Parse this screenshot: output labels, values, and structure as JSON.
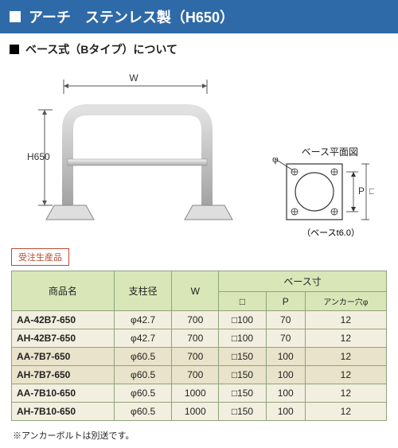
{
  "colors": {
    "title_bg": "#2f6aa8",
    "accent": "#b84a2e",
    "table_head_bg": "#d9e7b8",
    "row_a": "#f3efe0",
    "row_b": "#e9e3cb"
  },
  "title": "アーチ　ステンレス製（H650）",
  "subtitle": "ベース式（Bタイプ）について",
  "made_to_order_label": "受注生産品",
  "diagram": {
    "w_label": "W",
    "h_label": "H650",
    "base_plane_label": "ベース平面図",
    "base_thickness_label": "（ベースt6.0）",
    "p_label": "P",
    "phi_label": "φ",
    "square_label": "□"
  },
  "table": {
    "headers": {
      "name": "商品名",
      "diameter": "支柱径",
      "w": "W",
      "base_group": "ベース寸",
      "sq": "□",
      "p": "P",
      "anchor": "アンカー穴φ"
    },
    "rows": [
      {
        "name": "AA-42B7-650",
        "dia": "φ42.7",
        "w": "700",
        "sq": "□100",
        "p": "70",
        "anc": "12",
        "stripe": "a"
      },
      {
        "name": "AH-42B7-650",
        "dia": "φ42.7",
        "w": "700",
        "sq": "□100",
        "p": "70",
        "anc": "12",
        "stripe": "a"
      },
      {
        "name": "AA-7B7-650",
        "dia": "φ60.5",
        "w": "700",
        "sq": "□150",
        "p": "100",
        "anc": "12",
        "stripe": "b"
      },
      {
        "name": "AH-7B7-650",
        "dia": "φ60.5",
        "w": "700",
        "sq": "□150",
        "p": "100",
        "anc": "12",
        "stripe": "b"
      },
      {
        "name": "AA-7B10-650",
        "dia": "φ60.5",
        "w": "1000",
        "sq": "□150",
        "p": "100",
        "anc": "12",
        "stripe": "a"
      },
      {
        "name": "AH-7B10-650",
        "dia": "φ60.5",
        "w": "1000",
        "sq": "□150",
        "p": "100",
        "anc": "12",
        "stripe": "a"
      }
    ]
  },
  "note": "※アンカーボルトは別送です。"
}
